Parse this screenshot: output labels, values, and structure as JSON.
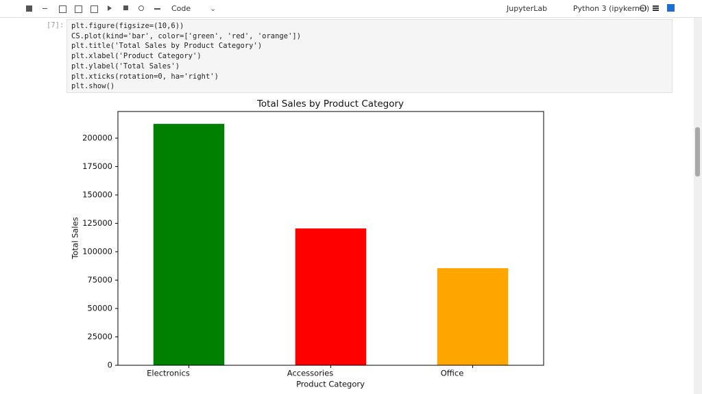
{
  "toolbar": {
    "cell_type": "Code",
    "app": "JupyterLab",
    "kernel": "Python 3 (ipykernel)"
  },
  "cell": {
    "prompt": "[7]:",
    "code": [
      "plt.figure(figsize=(10,6))",
      "CS.plot(kind='bar', color=['green', 'red', 'orange'])",
      "plt.title('Total Sales by Product Category')",
      "plt.xlabel('Product Category')",
      "plt.ylabel('Total Sales')",
      "plt.xticks(rotation=0, ha='right')",
      "plt.show()"
    ]
  },
  "chart_data": {
    "type": "bar",
    "title": "Total Sales by Product Category",
    "x_label": "Product Category",
    "y_label": "Total Sales",
    "categories": [
      "Electronics",
      "Accessories",
      "Office"
    ],
    "values": [
      212600,
      120500,
      85500
    ],
    "colors": [
      "#008000",
      "#ff0000",
      "#ffa500"
    ],
    "ylim": [
      0,
      223500
    ],
    "yticks": [
      0,
      25000,
      50000,
      75000,
      100000,
      125000,
      150000,
      175000,
      200000
    ]
  }
}
